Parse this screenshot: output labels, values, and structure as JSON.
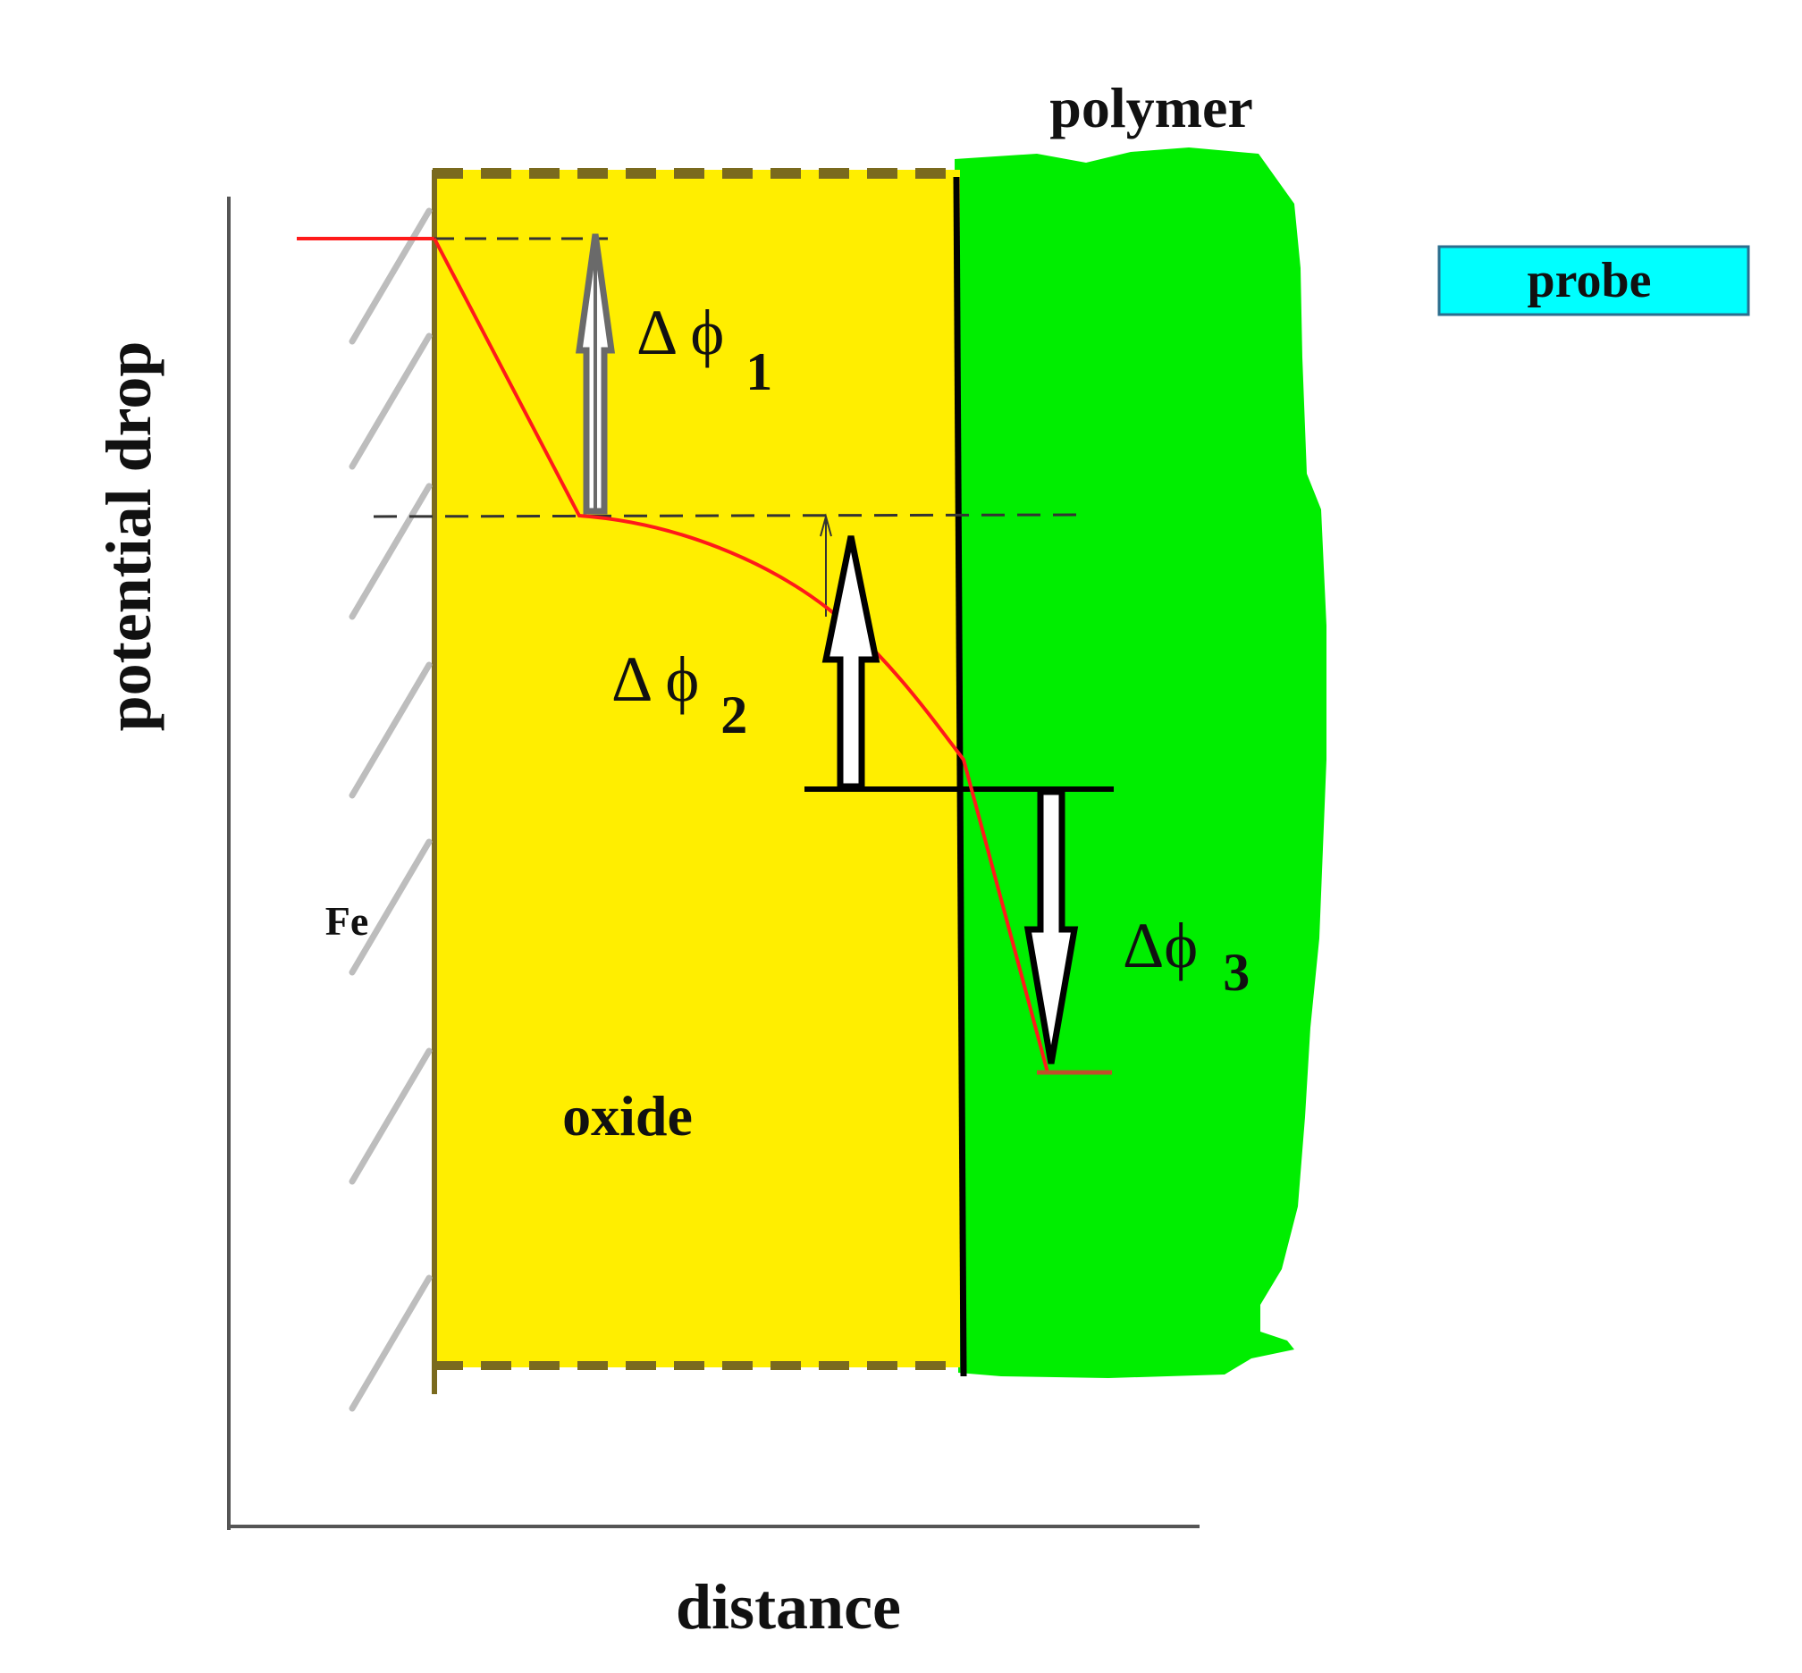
{
  "labels": {
    "y_axis": "potential drop",
    "x_axis": "distance",
    "polymer": "polymer",
    "probe": "probe",
    "oxide": "oxide",
    "metal": "Fe"
  },
  "potential_drops": [
    {
      "symbol": "Δ ϕ",
      "subscript": "1"
    },
    {
      "symbol": "Δ ϕ",
      "subscript": "2"
    },
    {
      "symbol": "Δϕ",
      "subscript": "3"
    }
  ],
  "colors": {
    "oxide": "#FFEE00",
    "oxide_border": "#7A6A1E",
    "polymer": "#00EE00",
    "probe": "#00FFFF",
    "potential_curve": "#FF1A1A",
    "axis": "#555555",
    "hatch": "#BDBDBD"
  },
  "icons": {
    "up_arrow": "outline-up-arrow",
    "down_arrow": "outline-down-arrow"
  }
}
